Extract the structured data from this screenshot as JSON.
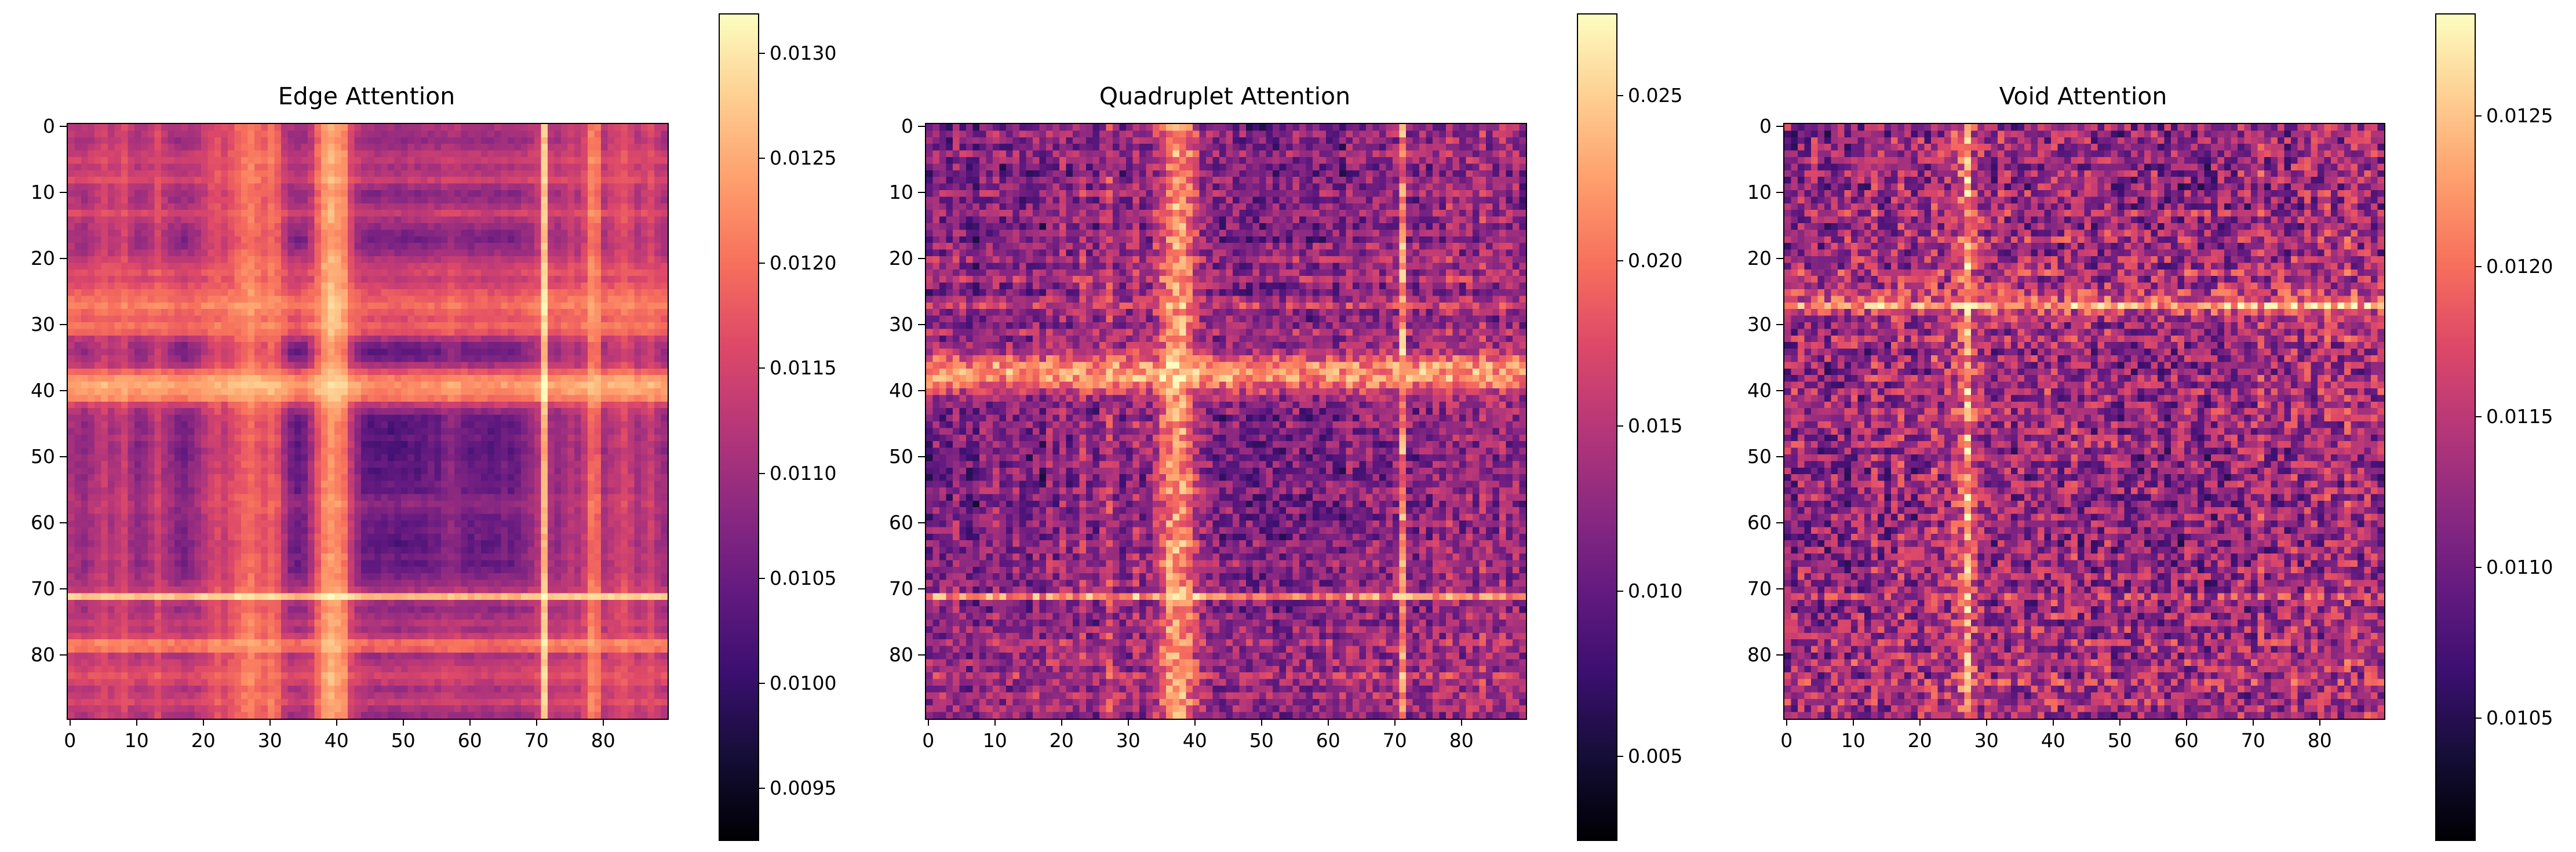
{
  "figure": {
    "background": "#ffffff",
    "text_color": "#000000"
  },
  "colormap": {
    "name": "magma",
    "stops": [
      [
        0.0,
        "#000004"
      ],
      [
        0.1,
        "#150e37"
      ],
      [
        0.2,
        "#3b0f70"
      ],
      [
        0.3,
        "#641a80"
      ],
      [
        0.4,
        "#8c2981"
      ],
      [
        0.5,
        "#b73779"
      ],
      [
        0.6,
        "#de4968"
      ],
      [
        0.7,
        "#f7705c"
      ],
      [
        0.8,
        "#fe9f6d"
      ],
      [
        0.9,
        "#fece91"
      ],
      [
        1.0,
        "#fcfdbf"
      ]
    ]
  },
  "chart_data": [
    {
      "type": "heatmap",
      "title": "Edge Attention",
      "matrix_size": [
        90,
        90
      ],
      "x_ticks": [
        0,
        10,
        20,
        30,
        40,
        50,
        60,
        70,
        80
      ],
      "y_ticks": [
        0,
        10,
        20,
        30,
        40,
        50,
        60,
        70,
        80
      ],
      "x_tick_labels": [
        "0",
        "10",
        "20",
        "30",
        "40",
        "50",
        "60",
        "70",
        "80"
      ],
      "y_tick_labels": [
        "0",
        "10",
        "20",
        "30",
        "40",
        "50",
        "60",
        "70",
        "80"
      ],
      "colorbar": {
        "vmin": 0.00926,
        "vmax": 0.01319,
        "tick_values": [
          0.0095,
          0.01,
          0.0105,
          0.011,
          0.0115,
          0.012,
          0.0125,
          0.013
        ],
        "tick_labels": [
          "0.0095",
          "0.0100",
          "0.0105",
          "0.0110",
          "0.0115",
          "0.0120",
          "0.0125",
          "0.0130"
        ]
      },
      "colormap": "magma",
      "description": "Smooth symmetric 90x90 attention matrix with bright cross bands near indices 26-31, 37-41, a near-white band at 71, and bright bands at 78-79; dark block around 44-68.",
      "value_model": {
        "noise": 0.07,
        "seed": 11,
        "row_profile": [
          0.52,
          0.48,
          0.44,
          0.5,
          0.56,
          0.6,
          0.52,
          0.56,
          0.62,
          0.5,
          0.42,
          0.46,
          0.52,
          0.62,
          0.52,
          0.46,
          0.4,
          0.36,
          0.42,
          0.48,
          0.56,
          0.62,
          0.66,
          0.6,
          0.66,
          0.72,
          0.76,
          0.8,
          0.74,
          0.7,
          0.76,
          0.7,
          0.52,
          0.36,
          0.3,
          0.36,
          0.52,
          0.72,
          0.86,
          0.92,
          0.88,
          0.82,
          0.6,
          0.44,
          0.3,
          0.26,
          0.24,
          0.3,
          0.24,
          0.2,
          0.24,
          0.3,
          0.26,
          0.3,
          0.34,
          0.3,
          0.4,
          0.44,
          0.4,
          0.34,
          0.3,
          0.34,
          0.3,
          0.26,
          0.3,
          0.36,
          0.3,
          0.34,
          0.4,
          0.46,
          0.54,
          1.0,
          0.5,
          0.44,
          0.5,
          0.56,
          0.5,
          0.6,
          0.8,
          0.76,
          0.5,
          0.56,
          0.6,
          0.66,
          0.6,
          0.5,
          0.56,
          0.62,
          0.52,
          0.46
        ]
      }
    },
    {
      "type": "heatmap",
      "title": "Quadruplet Attention",
      "matrix_size": [
        90,
        90
      ],
      "x_ticks": [
        0,
        10,
        20,
        30,
        40,
        50,
        60,
        70,
        80
      ],
      "y_ticks": [
        0,
        10,
        20,
        30,
        40,
        50,
        60,
        70,
        80
      ],
      "x_tick_labels": [
        "0",
        "10",
        "20",
        "30",
        "40",
        "50",
        "60",
        "70",
        "80"
      ],
      "y_tick_labels": [
        "0",
        "10",
        "20",
        "30",
        "40",
        "50",
        "60",
        "70",
        "80"
      ],
      "colorbar": {
        "vmin": 0.0025,
        "vmax": 0.0275,
        "tick_values": [
          0.005,
          0.01,
          0.015,
          0.02,
          0.025
        ],
        "tick_labels": [
          "0.005",
          "0.010",
          "0.015",
          "0.020",
          "0.025"
        ]
      },
      "colormap": "magma",
      "description": "Noisy symmetric 90x90 attention matrix with strong bright vertical/horizontal bands near indices 36-40 and 71, speckled orange-on-purple texture elsewhere.",
      "value_model": {
        "noise": 0.32,
        "seed": 23,
        "row_profile": [
          0.3,
          0.42,
          0.35,
          0.28,
          0.45,
          0.38,
          0.25,
          0.15,
          0.4,
          0.35,
          0.45,
          0.3,
          0.38,
          0.42,
          0.35,
          0.28,
          0.4,
          0.2,
          0.45,
          0.38,
          0.5,
          0.35,
          0.42,
          0.55,
          0.38,
          0.3,
          0.48,
          0.6,
          0.42,
          0.35,
          0.4,
          0.52,
          0.38,
          0.45,
          0.55,
          0.7,
          0.85,
          0.9,
          0.88,
          0.75,
          0.6,
          0.45,
          0.4,
          0.35,
          0.3,
          0.42,
          0.38,
          0.35,
          0.28,
          0.32,
          0.25,
          0.35,
          0.3,
          0.28,
          0.35,
          0.4,
          0.32,
          0.28,
          0.35,
          0.3,
          0.38,
          0.35,
          0.3,
          0.42,
          0.38,
          0.35,
          0.45,
          0.4,
          0.35,
          0.38,
          0.42,
          0.88,
          0.4,
          0.35,
          0.42,
          0.38,
          0.45,
          0.4,
          0.52,
          0.45,
          0.38,
          0.48,
          0.42,
          0.55,
          0.45,
          0.38,
          0.5,
          0.42,
          0.45,
          0.35
        ]
      }
    },
    {
      "type": "heatmap",
      "title": "Void Attention",
      "matrix_size": [
        90,
        90
      ],
      "x_ticks": [
        0,
        10,
        20,
        30,
        40,
        50,
        60,
        70,
        80
      ],
      "y_ticks": [
        0,
        10,
        20,
        30,
        40,
        50,
        60,
        70,
        80
      ],
      "x_tick_labels": [
        "0",
        "10",
        "20",
        "30",
        "40",
        "50",
        "60",
        "70",
        "80"
      ],
      "y_tick_labels": [
        "0",
        "10",
        "20",
        "30",
        "40",
        "50",
        "60",
        "70",
        "80"
      ],
      "colorbar": {
        "vmin": 0.0101,
        "vmax": 0.01284,
        "tick_values": [
          0.0105,
          0.011,
          0.0115,
          0.012,
          0.0125
        ],
        "tick_labels": [
          "0.0105",
          "0.0110",
          "0.0115",
          "0.0120",
          "0.0125"
        ]
      },
      "colormap": "magma",
      "description": "Very noisy symmetric 90x90 attention matrix with a strong bright band at index 27, scattered bright pixels throughout, darker block around 50-70.",
      "value_model": {
        "noise": 0.44,
        "seed": 37,
        "row_profile": [
          0.4,
          0.35,
          0.42,
          0.38,
          0.45,
          0.4,
          0.35,
          0.42,
          0.38,
          0.35,
          0.45,
          0.4,
          0.38,
          0.5,
          0.42,
          0.38,
          0.45,
          0.52,
          0.4,
          0.38,
          0.48,
          0.42,
          0.55,
          0.45,
          0.5,
          0.58,
          0.65,
          0.92,
          0.6,
          0.5,
          0.45,
          0.4,
          0.48,
          0.42,
          0.38,
          0.45,
          0.4,
          0.38,
          0.45,
          0.42,
          0.5,
          0.38,
          0.42,
          0.48,
          0.4,
          0.45,
          0.38,
          0.42,
          0.48,
          0.38,
          0.35,
          0.42,
          0.38,
          0.35,
          0.4,
          0.45,
          0.38,
          0.32,
          0.4,
          0.35,
          0.42,
          0.38,
          0.35,
          0.3,
          0.38,
          0.42,
          0.35,
          0.4,
          0.45,
          0.38,
          0.42,
          0.55,
          0.4,
          0.38,
          0.45,
          0.4,
          0.48,
          0.42,
          0.5,
          0.45,
          0.4,
          0.52,
          0.45,
          0.42,
          0.55,
          0.48,
          0.42,
          0.5,
          0.45,
          0.4
        ]
      }
    }
  ]
}
